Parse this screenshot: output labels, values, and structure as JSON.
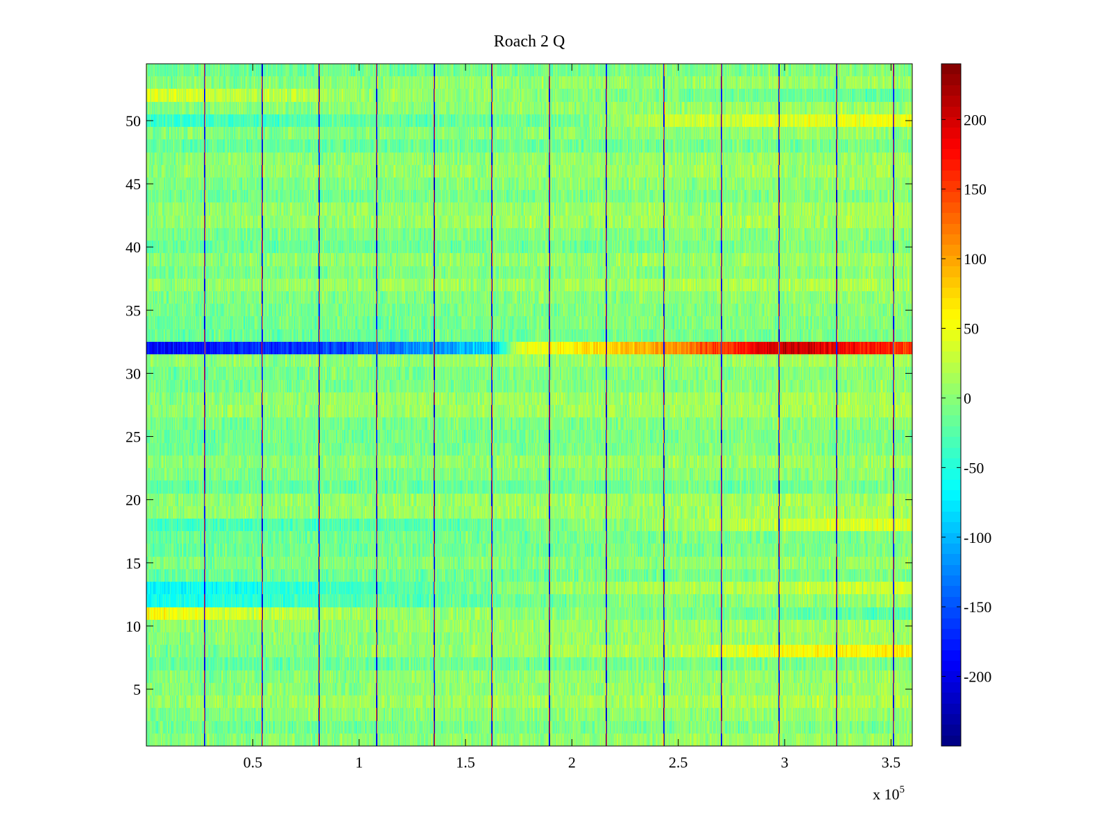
{
  "chart_data": {
    "type": "heatmap",
    "title": "Roach 2 Q",
    "xlabel": "",
    "ylabel": "",
    "x_range": [
      0,
      360000
    ],
    "y_range": [
      0.5,
      54.5
    ],
    "x_ticks": [
      {
        "value": 50000,
        "label": "0.5"
      },
      {
        "value": 100000,
        "label": "1"
      },
      {
        "value": 150000,
        "label": "1.5"
      },
      {
        "value": 200000,
        "label": "2"
      },
      {
        "value": 250000,
        "label": "2.5"
      },
      {
        "value": 300000,
        "label": "3"
      },
      {
        "value": 350000,
        "label": "3.5"
      }
    ],
    "x_exponent_label": "x 10",
    "x_exponent_sup": "5",
    "y_ticks": [
      {
        "value": 5,
        "label": "5"
      },
      {
        "value": 10,
        "label": "10"
      },
      {
        "value": 15,
        "label": "15"
      },
      {
        "value": 20,
        "label": "20"
      },
      {
        "value": 25,
        "label": "25"
      },
      {
        "value": 30,
        "label": "30"
      },
      {
        "value": 35,
        "label": "35"
      },
      {
        "value": 40,
        "label": "40"
      },
      {
        "value": 45,
        "label": "45"
      },
      {
        "value": 50,
        "label": "50"
      }
    ],
    "n_rows": 54,
    "colormap": "jet",
    "color_range": [
      -250,
      240
    ],
    "colorbar_ticks": [
      {
        "value": 200,
        "label": "200"
      },
      {
        "value": 150,
        "label": "150"
      },
      {
        "value": 100,
        "label": "100"
      },
      {
        "value": 50,
        "label": "50"
      },
      {
        "value": 0,
        "label": "0"
      },
      {
        "value": -50,
        "label": "-50"
      },
      {
        "value": -100,
        "label": "-100"
      },
      {
        "value": -150,
        "label": "-150"
      },
      {
        "value": -200,
        "label": "-200"
      }
    ],
    "block_boundaries": [
      27000,
      54000,
      81000,
      108000,
      135000,
      162000,
      189000,
      216000,
      243000,
      270000,
      297000,
      324000,
      351000
    ],
    "row_profiles": [
      {
        "row": 32,
        "description_points": [
          [
            0,
            -190
          ],
          [
            100000,
            -150
          ],
          [
            165000,
            -85
          ],
          [
            175000,
            40
          ],
          [
            250000,
            110
          ],
          [
            300000,
            210
          ],
          [
            330000,
            180
          ],
          [
            360000,
            150
          ]
        ]
      },
      {
        "row": 11,
        "points": [
          [
            0,
            55
          ],
          [
            50000,
            30
          ],
          [
            100000,
            10
          ],
          [
            200000,
            0
          ],
          [
            360000,
            -25
          ]
        ]
      },
      {
        "row": 12,
        "points": [
          [
            0,
            -60
          ],
          [
            50000,
            -45
          ],
          [
            100000,
            -25
          ],
          [
            200000,
            -10
          ],
          [
            360000,
            10
          ]
        ]
      },
      {
        "row": 13,
        "points": [
          [
            0,
            -70
          ],
          [
            50000,
            -55
          ],
          [
            100000,
            -35
          ],
          [
            200000,
            10
          ],
          [
            360000,
            35
          ]
        ]
      },
      {
        "row": 50,
        "points": [
          [
            0,
            -40
          ],
          [
            200000,
            -10
          ],
          [
            250000,
            30
          ],
          [
            360000,
            50
          ]
        ]
      },
      {
        "row": 52,
        "points": [
          [
            0,
            40
          ],
          [
            100000,
            10
          ],
          [
            360000,
            -20
          ]
        ]
      },
      {
        "row": 8,
        "points": [
          [
            0,
            -10
          ],
          [
            250000,
            20
          ],
          [
            300000,
            55
          ],
          [
            360000,
            65
          ]
        ]
      },
      {
        "row": 18,
        "points": [
          [
            0,
            -35
          ],
          [
            150000,
            -20
          ],
          [
            300000,
            30
          ],
          [
            360000,
            40
          ]
        ]
      }
    ]
  }
}
